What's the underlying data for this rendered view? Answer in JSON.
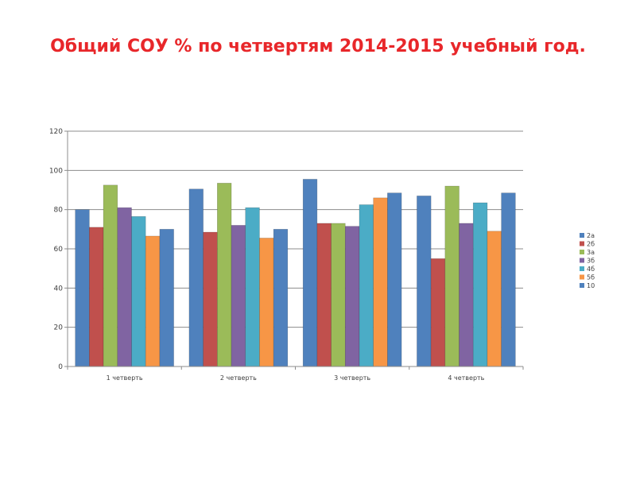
{
  "title": "Общий СОУ % по четвертям 2014-2015 учебный год.",
  "chart_data": {
    "type": "bar",
    "title": "Общий СОУ % по четвертям 2014-2015 учебный год.",
    "categories": [
      "1 четверть",
      "2 четверть",
      "3 четверть",
      "4 четверть"
    ],
    "series": [
      {
        "name": "2а",
        "color": "#4f81bd",
        "values": [
          80,
          90.5,
          95.5,
          87
        ]
      },
      {
        "name": "2б",
        "color": "#c0504d",
        "values": [
          71,
          68.5,
          73,
          55
        ]
      },
      {
        "name": "3а",
        "color": "#9bbb59",
        "values": [
          92.5,
          93.5,
          73,
          92
        ]
      },
      {
        "name": "3б",
        "color": "#8064a2",
        "values": [
          81,
          72,
          71.5,
          73
        ]
      },
      {
        "name": "4б",
        "color": "#4bacc6",
        "values": [
          76.5,
          81,
          82.5,
          83.5
        ]
      },
      {
        "name": "5б",
        "color": "#f79646",
        "values": [
          66.5,
          65.5,
          86,
          69
        ]
      },
      {
        "name": "10",
        "color": "#4f81bd",
        "values": [
          70,
          70,
          88.5,
          88.5
        ]
      }
    ],
    "ylim": [
      0,
      120
    ],
    "yticks": [
      0,
      20,
      40,
      60,
      80,
      100,
      120
    ],
    "ytick_labels": [
      "0",
      "20",
      "40",
      "60",
      "80",
      "100",
      "120"
    ],
    "grid": true,
    "legend": "right",
    "xlabel": "",
    "ylabel": ""
  }
}
